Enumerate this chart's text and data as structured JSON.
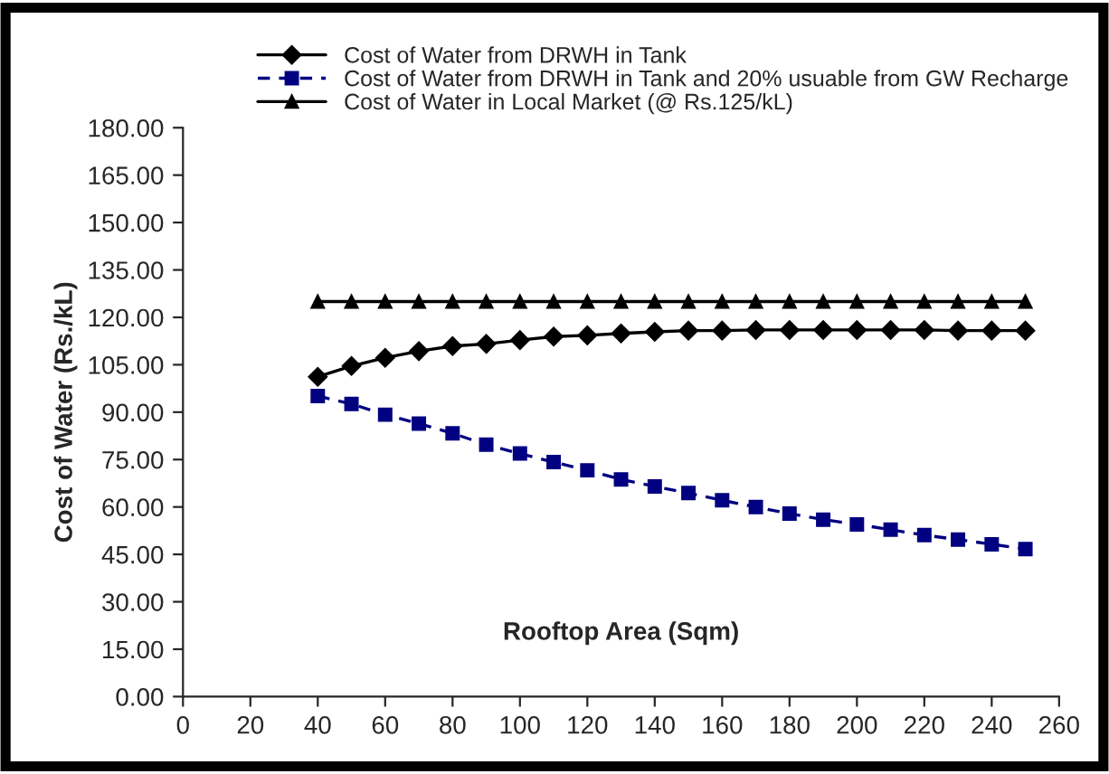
{
  "chart_data": {
    "type": "line",
    "xlabel": "Rooftop Area (Sqm)",
    "ylabel": "Cost of Water (Rs./kL)",
    "x": [
      40,
      50,
      60,
      70,
      80,
      90,
      100,
      110,
      120,
      130,
      140,
      150,
      160,
      170,
      180,
      190,
      200,
      210,
      220,
      230,
      240,
      250
    ],
    "xlim": [
      0,
      260
    ],
    "xticks": [
      0,
      20,
      40,
      60,
      80,
      100,
      120,
      140,
      160,
      180,
      200,
      220,
      240,
      260
    ],
    "ylim": [
      0,
      180
    ],
    "yticks": [
      {
        "value": 0,
        "label": "0.00"
      },
      {
        "value": 15,
        "label": "15.00"
      },
      {
        "value": 30,
        "label": "30.00"
      },
      {
        "value": 45,
        "label": "45.00"
      },
      {
        "value": 60,
        "label": "60.00"
      },
      {
        "value": 75,
        "label": "75.00"
      },
      {
        "value": 90,
        "label": "90.00"
      },
      {
        "value": 105,
        "label": "105.00"
      },
      {
        "value": 120,
        "label": "120.00"
      },
      {
        "value": 135,
        "label": "135.00"
      },
      {
        "value": 150,
        "label": "150.00"
      },
      {
        "value": 165,
        "label": "165.00"
      },
      {
        "value": 180,
        "label": "180.00"
      }
    ],
    "grid": false,
    "legend": "top left",
    "series": [
      {
        "name": "Cost of Water from DRWH in Tank",
        "color": "#000000",
        "marker": "diamond",
        "line_style": "solid",
        "values": [
          101.2,
          104.6,
          107.2,
          109.3,
          110.9,
          111.6,
          112.8,
          113.9,
          114.3,
          114.9,
          115.4,
          115.8,
          115.8,
          116,
          116,
          116,
          116,
          116,
          116,
          115.8,
          115.8,
          115.8
        ]
      },
      {
        "name": "Cost of Water from DRWH in Tank and 20% usuable from GW Recharge",
        "color": "#000080",
        "marker": "square",
        "line_style": "dashed",
        "values": [
          95.1,
          92.6,
          89.2,
          86.4,
          83.3,
          79.7,
          76.9,
          74.2,
          71.6,
          68.7,
          66.5,
          64.4,
          62.1,
          60.0,
          57.9,
          56.0,
          54.5,
          52.8,
          51.1,
          49.7,
          48.2,
          46.7
        ]
      },
      {
        "name": "Cost of Water in Local Market (@ Rs.125/kL)",
        "color": "#000000",
        "marker": "triangle",
        "line_style": "solid",
        "values": [
          125,
          125,
          125,
          125,
          125,
          125,
          125,
          125,
          125,
          125,
          125,
          125,
          125,
          125,
          125,
          125,
          125,
          125,
          125,
          125,
          125,
          125
        ]
      }
    ]
  }
}
